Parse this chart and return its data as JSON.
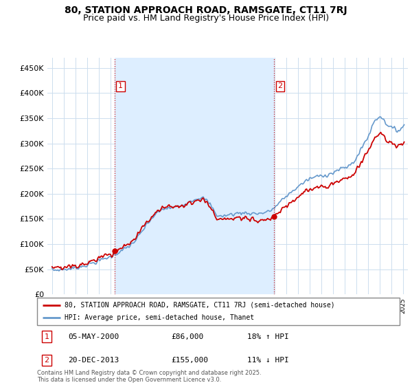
{
  "title": "80, STATION APPROACH ROAD, RAMSGATE, CT11 7RJ",
  "subtitle": "Price paid vs. HM Land Registry's House Price Index (HPI)",
  "title_fontsize": 10,
  "subtitle_fontsize": 9,
  "ylabel_ticks": [
    "£0",
    "£50K",
    "£100K",
    "£150K",
    "£200K",
    "£250K",
    "£300K",
    "£350K",
    "£400K",
    "£450K"
  ],
  "ytick_values": [
    0,
    50000,
    100000,
    150000,
    200000,
    250000,
    300000,
    350000,
    400000,
    450000
  ],
  "ylim": [
    0,
    470000
  ],
  "background_color": "#ffffff",
  "plot_bg_color": "#ffffff",
  "grid_color": "#ccddee",
  "hpi_color": "#6699cc",
  "hpi_fill_color": "#ddeeff",
  "price_color": "#cc0000",
  "marker_color": "#cc0000",
  "vline_color": "#cc0000",
  "t1_year": 2000.35,
  "t1_price": 86000,
  "t2_year": 2013.97,
  "t2_price": 155000,
  "legend_entries": [
    "80, STATION APPROACH ROAD, RAMSGATE, CT11 7RJ (semi-detached house)",
    "HPI: Average price, semi-detached house, Thanet"
  ],
  "annotation1_label": "1",
  "annotation1_date": "05-MAY-2000",
  "annotation1_price": "£86,000",
  "annotation1_hpi": "18% ↑ HPI",
  "annotation2_label": "2",
  "annotation2_date": "20-DEC-2013",
  "annotation2_price": "£155,000",
  "annotation2_hpi": "11% ↓ HPI",
  "footer": "Contains HM Land Registry data © Crown copyright and database right 2025.\nThis data is licensed under the Open Government Licence v3.0.",
  "xlim_left": 1994.6,
  "xlim_right": 2025.4
}
